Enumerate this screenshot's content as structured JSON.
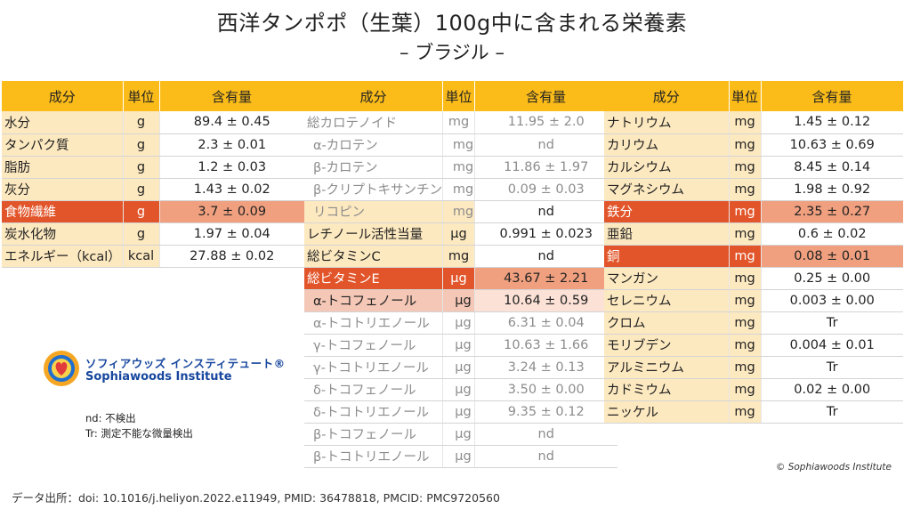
{
  "title": "西洋タンポポ（生葉）100g中に含まれる栄養素",
  "subtitle": "– ブラジル –",
  "headers": {
    "name": "成分",
    "unit": "単位",
    "value": "含有量"
  },
  "table1": [
    {
      "name": "水分",
      "unit": "g",
      "value": "89.4 ± 0.45"
    },
    {
      "name": "タンパク質",
      "unit": "g",
      "value": "2.3 ± 0.01"
    },
    {
      "name": "脂肪",
      "unit": "g",
      "value": "1.2 ± 0.03"
    },
    {
      "name": "灰分",
      "unit": "g",
      "value": "1.43 ± 0.02"
    },
    {
      "name": "食物繊維",
      "unit": "g",
      "value": "3.7 ± 0.09"
    },
    {
      "name": "炭水化物",
      "unit": "g",
      "value": "1.97 ± 0.04"
    },
    {
      "name": "エネルギー（kcal）",
      "unit": "kcal",
      "value": "27.88 ± 0.02"
    }
  ],
  "table2": [
    {
      "name": "総カロテノイド",
      "unit": "mg",
      "value": "11.95 ± 2.0"
    },
    {
      "name": "α-カロテン",
      "unit": "mg",
      "value": "nd"
    },
    {
      "name": "β-カロテン",
      "unit": "mg",
      "value": "11.86 ± 1.97"
    },
    {
      "name": "β-クリプトキサンチン",
      "unit": "mg",
      "value": "0.09 ± 0.03"
    },
    {
      "name": "リコピン",
      "unit": "mg",
      "value": "nd"
    },
    {
      "name": "レチノール活性当量",
      "unit": "μg",
      "value": "0.991 ± 0.023"
    },
    {
      "name": "総ビタミンC",
      "unit": "mg",
      "value": "nd"
    },
    {
      "name": "総ビタミンE",
      "unit": "μg",
      "value": "43.67 ± 2.21"
    },
    {
      "name": "α-トコフェノール",
      "unit": "μg",
      "value": "10.64 ± 0.59"
    },
    {
      "name": "α-トコトリエノール",
      "unit": "μg",
      "value": "6.31 ± 0.04"
    },
    {
      "name": "γ-トコフェノール",
      "unit": "μg",
      "value": "10.63 ± 1.66"
    },
    {
      "name": "γ-トコトリエノール",
      "unit": "μg",
      "value": "3.24 ± 0.13"
    },
    {
      "name": "δ-トコフェノール",
      "unit": "μg",
      "value": "3.50 ± 0.00"
    },
    {
      "name": "δ-トコトリエノール",
      "unit": "μg",
      "value": "9.35 ± 0.12"
    },
    {
      "name": "β-トコフェノール",
      "unit": "μg",
      "value": "nd"
    },
    {
      "name": "β-トコトリエノール",
      "unit": "μg",
      "value": "nd"
    }
  ],
  "table3": [
    {
      "name": "ナトリウム",
      "unit": "mg",
      "value": "1.45 ± 0.12"
    },
    {
      "name": "カリウム",
      "unit": "mg",
      "value": "10.63 ± 0.69"
    },
    {
      "name": "カルシウム",
      "unit": "mg",
      "value": "8.45 ± 0.14"
    },
    {
      "name": "マグネシウム",
      "unit": "mg",
      "value": "1.98 ± 0.92"
    },
    {
      "name": "鉄分",
      "unit": "mg",
      "value": "2.35 ± 0.27"
    },
    {
      "name": "亜鉛",
      "unit": "mg",
      "value": "0.6 ± 0.02"
    },
    {
      "name": "銅",
      "unit": "mg",
      "value": "0.08 ± 0.01"
    },
    {
      "name": "マンガン",
      "unit": "mg",
      "value": "0.25 ± 0.00"
    },
    {
      "name": "セレニウム",
      "unit": "mg",
      "value": "0.003 ± 0.00"
    },
    {
      "name": "クロム",
      "unit": "mg",
      "value": "Tr"
    },
    {
      "name": "モリブデン",
      "unit": "mg",
      "value": "0.004 ± 0.01"
    },
    {
      "name": "アルミニウム",
      "unit": "mg",
      "value": "Tr"
    },
    {
      "name": "カドミウム",
      "unit": "mg",
      "value": "0.02 ± 0.00"
    },
    {
      "name": "ニッケル",
      "unit": "mg",
      "value": "Tr"
    }
  ],
  "logo": {
    "name_jp": "ソフィアウッズ インスティテュート®",
    "name_en": "Sophiawoods Institute"
  },
  "notes": [
    "nd: 不検出",
    "Tr: 測定不能な微量検出"
  ],
  "copyright": "© Sophiawoods Institute",
  "source": "データ出所：doi: 10.1016/j.heliyon.2022.e11949, PMID: 36478818,  PMCID: PMC9720560",
  "colors": {
    "header": "#fbbc1a",
    "name_cell": "#fde9c0",
    "highlight": "#e2552a",
    "highlight_value": "#f0a07f",
    "logo_text": "#17479e"
  }
}
